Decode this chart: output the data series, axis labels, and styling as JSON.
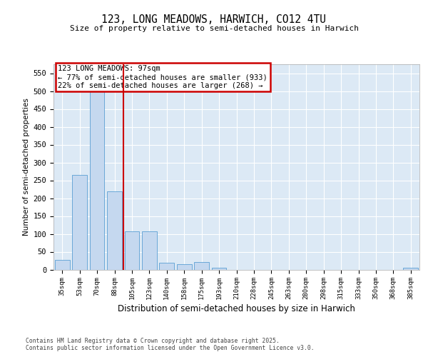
{
  "title_line1": "123, LONG MEADOWS, HARWICH, CO12 4TU",
  "title_line2": "Size of property relative to semi-detached houses in Harwich",
  "xlabel": "Distribution of semi-detached houses by size in Harwich",
  "ylabel": "Number of semi-detached properties",
  "categories": [
    "35sqm",
    "53sqm",
    "70sqm",
    "88sqm",
    "105sqm",
    "123sqm",
    "140sqm",
    "158sqm",
    "175sqm",
    "193sqm",
    "210sqm",
    "228sqm",
    "245sqm",
    "263sqm",
    "280sqm",
    "298sqm",
    "315sqm",
    "333sqm",
    "350sqm",
    "368sqm",
    "385sqm"
  ],
  "values": [
    28,
    265,
    505,
    220,
    108,
    108,
    20,
    15,
    22,
    5,
    0,
    0,
    0,
    0,
    0,
    0,
    0,
    0,
    0,
    0,
    5
  ],
  "bar_color": "#c5d8ef",
  "bar_edge_color": "#5a9fd4",
  "red_line_x": 3.5,
  "annotation_text": "123 LONG MEADOWS: 97sqm\n← 77% of semi-detached houses are smaller (933)\n22% of semi-detached houses are larger (268) →",
  "ylim": [
    0,
    575
  ],
  "yticks": [
    0,
    50,
    100,
    150,
    200,
    250,
    300,
    350,
    400,
    450,
    500,
    550
  ],
  "footer_line1": "Contains HM Land Registry data © Crown copyright and database right 2025.",
  "footer_line2": "Contains public sector information licensed under the Open Government Licence v3.0.",
  "bg_color": "#dce9f5",
  "fig_bg_color": "#ffffff",
  "grid_color": "#ffffff",
  "ann_box_edge": "#cc0000",
  "ann_box_face": "#ffffff",
  "red_line_color": "#cc0000"
}
